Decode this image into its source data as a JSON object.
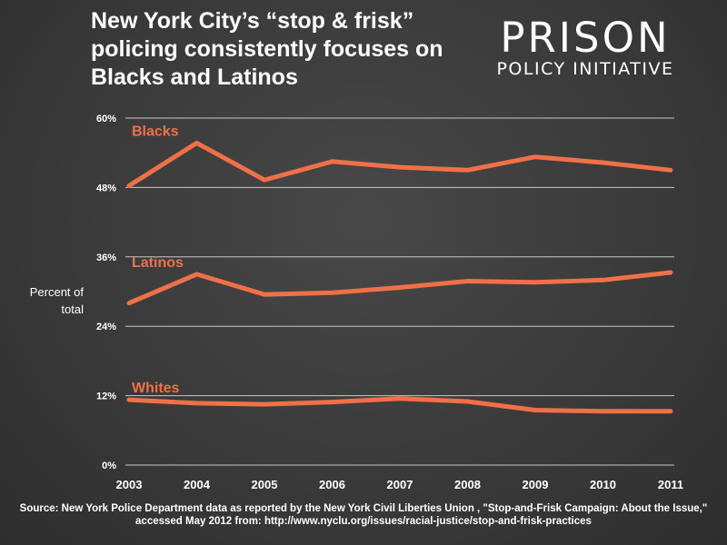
{
  "title_lines": [
    "New York City’s “stop & frisk”",
    "policing consistently focuses on",
    "Blacks and Latinos"
  ],
  "logo": {
    "main": "PRISON",
    "sub": "POLICY INITIATIVE"
  },
  "colors": {
    "line": "#f07048",
    "grid": "#c8c8c8",
    "text": "#ffffff"
  },
  "chart_data": {
    "type": "line",
    "x": [
      "2003",
      "2004",
      "2005",
      "2006",
      "2007",
      "2008",
      "2009",
      "2010",
      "2011"
    ],
    "ylabel_lines": [
      "Percent of",
      "total"
    ],
    "ylim": [
      0,
      60
    ],
    "yticks": [
      0,
      12,
      24,
      36,
      48,
      60
    ],
    "ytick_labels": [
      "0%",
      "12%",
      "24%",
      "36%",
      "48%",
      "60%"
    ],
    "grid": true,
    "series": [
      {
        "name": "Blacks",
        "values": [
          48.3,
          55.7,
          49.3,
          52.5,
          51.5,
          51.0,
          53.3,
          52.3,
          51.0
        ]
      },
      {
        "name": "Latinos",
        "values": [
          28.0,
          33.0,
          29.5,
          29.8,
          30.7,
          31.8,
          31.6,
          32.0,
          33.3
        ]
      },
      {
        "name": "Whites",
        "values": [
          11.3,
          10.7,
          10.5,
          10.9,
          11.5,
          11.0,
          9.5,
          9.3,
          9.3
        ]
      }
    ]
  },
  "source": {
    "line1": "Source: New York Police Department data as reported by the New York Civil Liberties Union , \"Stop-and-Frisk Campaign: About the Issue,\"",
    "line2": "accessed May 2012 from: http://www.nyclu.org/issues/racial-justice/stop-and-frisk-practices"
  }
}
